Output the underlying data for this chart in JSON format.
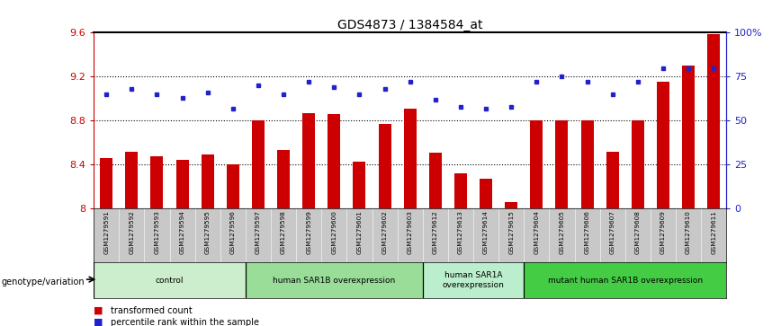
{
  "title": "GDS4873 / 1384584_at",
  "samples": [
    "GSM1279591",
    "GSM1279592",
    "GSM1279593",
    "GSM1279594",
    "GSM1279595",
    "GSM1279596",
    "GSM1279597",
    "GSM1279598",
    "GSM1279599",
    "GSM1279600",
    "GSM1279601",
    "GSM1279602",
    "GSM1279603",
    "GSM1279612",
    "GSM1279613",
    "GSM1279614",
    "GSM1279615",
    "GSM1279604",
    "GSM1279605",
    "GSM1279606",
    "GSM1279607",
    "GSM1279608",
    "GSM1279609",
    "GSM1279610",
    "GSM1279611"
  ],
  "bar_values": [
    8.46,
    8.52,
    8.48,
    8.44,
    8.49,
    8.4,
    8.8,
    8.53,
    8.87,
    8.86,
    8.43,
    8.77,
    8.91,
    8.51,
    8.32,
    8.27,
    8.06,
    8.8,
    8.8,
    8.8,
    8.52,
    8.8,
    9.15,
    9.3,
    9.59
  ],
  "percentile_values": [
    65,
    68,
    65,
    63,
    66,
    57,
    70,
    65,
    72,
    69,
    65,
    68,
    72,
    62,
    58,
    57,
    58,
    72,
    75,
    72,
    65,
    72,
    80,
    80,
    80
  ],
  "ylim_left": [
    8.0,
    9.6
  ],
  "ylim_right": [
    0,
    100
  ],
  "yticks_left": [
    8.0,
    8.4,
    8.8,
    9.2,
    9.6
  ],
  "yticks_left_labels": [
    "8",
    "8.4",
    "8.8",
    "9.2",
    "9.6"
  ],
  "yticks_right": [
    0,
    25,
    50,
    75,
    100
  ],
  "yticks_right_labels": [
    "0",
    "25",
    "50",
    "75",
    "100%"
  ],
  "hlines": [
    8.4,
    8.8,
    9.2
  ],
  "bar_color": "#cc0000",
  "dot_color": "#2222cc",
  "bar_bottom": 8.0,
  "groups": [
    {
      "label": "control",
      "start": 0,
      "end": 5,
      "color": "#cceecc"
    },
    {
      "label": "human SAR1B overexpression",
      "start": 6,
      "end": 12,
      "color": "#99dd99"
    },
    {
      "label": "human SAR1A\noverexpression",
      "start": 13,
      "end": 16,
      "color": "#bbeecc"
    },
    {
      "label": "mutant human SAR1B overexpression",
      "start": 17,
      "end": 24,
      "color": "#44cc44"
    }
  ],
  "genotype_label": "genotype/variation",
  "legend": [
    {
      "label": "transformed count",
      "color": "#cc0000"
    },
    {
      "label": "percentile rank within the sample",
      "color": "#2222cc"
    }
  ]
}
